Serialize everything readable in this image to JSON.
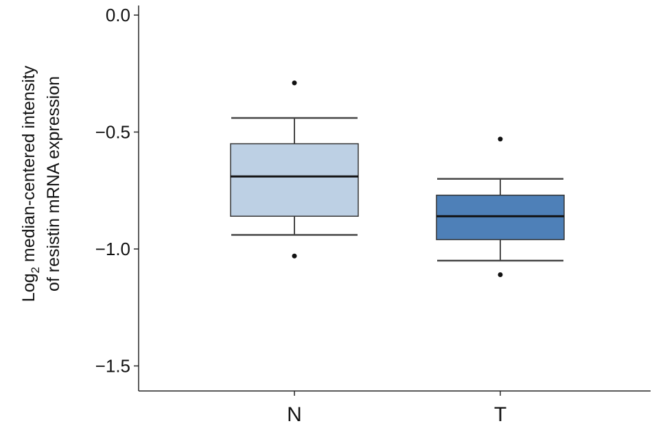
{
  "chart_data": {
    "type": "box",
    "ylabel": {
      "line1_main": "Log",
      "line1_sub": "2",
      "line1_rest": " median-centered intensity",
      "line2": "of resistin mRNA expression"
    },
    "ylim": [
      -1.6,
      0.0
    ],
    "yticks": [
      0.0,
      -0.5,
      -1.0,
      -1.5
    ],
    "ytick_labels": [
      "0.0",
      "−0.5",
      "−1.0",
      "−1.5"
    ],
    "categories": [
      "N",
      "T"
    ],
    "boxes": [
      {
        "category": "N",
        "whisker_high": -0.44,
        "q3": -0.55,
        "median": -0.69,
        "q1": -0.86,
        "whisker_low": -0.94,
        "outliers": [
          -0.29,
          -1.03
        ],
        "color": "#bdd0e4"
      },
      {
        "category": "T",
        "whisker_high": -0.7,
        "q3": -0.77,
        "median": -0.86,
        "q1": -0.96,
        "whisker_low": -1.05,
        "outliers": [
          -0.53,
          -1.11
        ],
        "color": "#4e80b8"
      }
    ],
    "grid": false,
    "legend": "none"
  }
}
